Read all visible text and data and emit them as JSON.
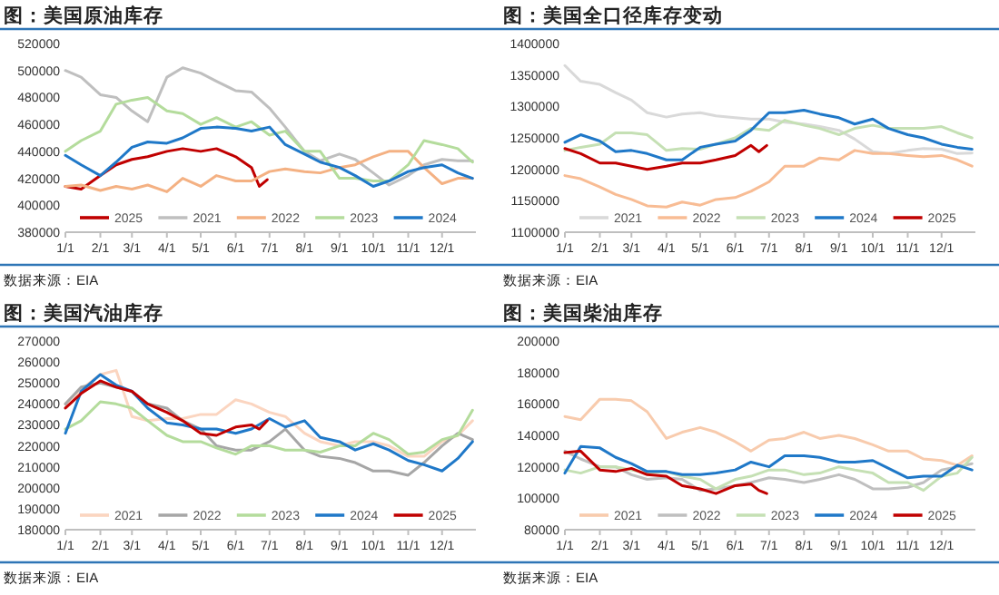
{
  "chart_data": [
    {
      "type": "line",
      "title": "图：美国原油库存",
      "annotations": [
        "数据来源：EIA"
      ],
      "legend": "bottom",
      "line_style": "solid",
      "x": [
        "--01-01",
        "--01-15",
        "--02-01",
        "--02-15",
        "--03-01",
        "--03-15",
        "--04-01",
        "--04-15",
        "--05-01",
        "--05-15",
        "--06-01",
        "--06-15",
        "--07-01",
        "--07-15",
        "--08-01",
        "--08-15",
        "--09-01",
        "--09-15",
        "--10-01",
        "--10-15",
        "--11-01",
        "--11-15",
        "--12-01",
        "--12-15",
        "--12-28"
      ],
      "xlim": [
        "--01-01",
        "--12-31"
      ],
      "xticks": [
        {
          "value": "--01-01",
          "label": "1/1"
        },
        {
          "value": "--02-01",
          "label": "2/1"
        },
        {
          "value": "--03-01",
          "label": "3/1"
        },
        {
          "value": "--04-01",
          "label": "4/1"
        },
        {
          "value": "--05-01",
          "label": "5/1"
        },
        {
          "value": "--06-01",
          "label": "6/1"
        },
        {
          "value": "--07-01",
          "label": "7/1"
        },
        {
          "value": "--08-01",
          "label": "8/1"
        },
        {
          "value": "--09-01",
          "label": "9/1"
        },
        {
          "value": "--10-01",
          "label": "10/1"
        },
        {
          "value": "--11-01",
          "label": "11/1"
        },
        {
          "value": "--12-01",
          "label": "12/1"
        }
      ],
      "ylim": [
        380000,
        520000
      ],
      "yticks": [
        380000,
        400000,
        420000,
        440000,
        460000,
        480000,
        500000,
        520000
      ],
      "series": [
        {
          "name": "2025",
          "color": "#c00000",
          "x": [
            "--01-01",
            "--01-15",
            "--02-01",
            "--02-15",
            "--03-01",
            "--03-15",
            "--04-01",
            "--04-15",
            "--05-01",
            "--05-15",
            "--06-01",
            "--06-15",
            "--06-22",
            "--06-29"
          ],
          "values": [
            414000,
            412000,
            422000,
            430000,
            434000,
            436000,
            440000,
            442000,
            440000,
            442000,
            436000,
            428000,
            414000,
            419000
          ]
        },
        {
          "name": "2021",
          "color": "#bfbfbf",
          "values": [
            500000,
            495000,
            482000,
            480000,
            470000,
            462000,
            495000,
            502000,
            498000,
            492000,
            485000,
            484000,
            472000,
            458000,
            440000,
            433000,
            438000,
            434000,
            424000,
            415000,
            422000,
            430000,
            434000,
            433000,
            433000
          ]
        },
        {
          "name": "2022",
          "color": "#f4b183",
          "values": [
            414000,
            415000,
            411000,
            414000,
            412000,
            415000,
            410000,
            420000,
            414000,
            422000,
            418000,
            418000,
            425000,
            427000,
            425000,
            424000,
            428000,
            430000,
            436000,
            440000,
            440000,
            428000,
            416000,
            420000,
            420000
          ]
        },
        {
          "name": "2023",
          "color": "#b4dc9c",
          "values": [
            440000,
            448000,
            455000,
            475000,
            478000,
            480000,
            470000,
            468000,
            460000,
            465000,
            458000,
            462000,
            452000,
            455000,
            440000,
            440000,
            420000,
            420000,
            418000,
            418000,
            430000,
            448000,
            445000,
            442000,
            432000
          ]
        },
        {
          "name": "2024",
          "color": "#1f78c8",
          "values": [
            437000,
            430000,
            422000,
            432000,
            443000,
            447000,
            446000,
            450000,
            457000,
            458000,
            457000,
            455000,
            458000,
            445000,
            438000,
            432000,
            428000,
            422000,
            414000,
            418000,
            425000,
            428000,
            430000,
            424000,
            420000
          ]
        }
      ]
    },
    {
      "type": "line",
      "title": "图：美国全口径库存变动",
      "annotations": [
        "数据来源：EIA"
      ],
      "legend": "bottom",
      "line_style": "solid",
      "x": [
        "--01-01",
        "--01-15",
        "--02-01",
        "--02-15",
        "--03-01",
        "--03-15",
        "--04-01",
        "--04-15",
        "--05-01",
        "--05-15",
        "--06-01",
        "--06-15",
        "--07-01",
        "--07-15",
        "--08-01",
        "--08-15",
        "--09-01",
        "--09-15",
        "--10-01",
        "--10-15",
        "--11-01",
        "--11-15",
        "--12-01",
        "--12-15",
        "--12-28"
      ],
      "xlim": [
        "--01-01",
        "--12-31"
      ],
      "xticks": [
        {
          "value": "--01-01",
          "label": "1/1"
        },
        {
          "value": "--02-01",
          "label": "2/1"
        },
        {
          "value": "--03-01",
          "label": "3/1"
        },
        {
          "value": "--04-01",
          "label": "4/1"
        },
        {
          "value": "--05-01",
          "label": "5/1"
        },
        {
          "value": "--06-01",
          "label": "6/1"
        },
        {
          "value": "--07-01",
          "label": "7/1"
        },
        {
          "value": "--08-01",
          "label": "8/1"
        },
        {
          "value": "--09-01",
          "label": "9/1"
        },
        {
          "value": "--10-01",
          "label": "10/1"
        },
        {
          "value": "--11-01",
          "label": "11/1"
        },
        {
          "value": "--12-01",
          "label": "12/1"
        }
      ],
      "ylim": [
        1100000,
        1400000
      ],
      "yticks": [
        1100000,
        1150000,
        1200000,
        1250000,
        1300000,
        1350000,
        1400000
      ],
      "series": [
        {
          "name": "2021",
          "color": "#d9d9d9",
          "values": [
            1365000,
            1340000,
            1335000,
            1322000,
            1310000,
            1290000,
            1283000,
            1288000,
            1290000,
            1285000,
            1282000,
            1280000,
            1280000,
            1275000,
            1272000,
            1268000,
            1262000,
            1248000,
            1228000,
            1225000,
            1230000,
            1233000,
            1232000,
            1225000,
            1226000
          ]
        },
        {
          "name": "2022",
          "color": "#f8bc94",
          "values": [
            1190000,
            1185000,
            1172000,
            1160000,
            1152000,
            1142000,
            1140000,
            1148000,
            1143000,
            1152000,
            1155000,
            1165000,
            1180000,
            1205000,
            1205000,
            1218000,
            1215000,
            1230000,
            1225000,
            1225000,
            1222000,
            1220000,
            1222000,
            1215000,
            1205000
          ]
        },
        {
          "name": "2023",
          "color": "#c5e0b4",
          "values": [
            1230000,
            1235000,
            1240000,
            1258000,
            1258000,
            1255000,
            1230000,
            1233000,
            1232000,
            1240000,
            1250000,
            1265000,
            1262000,
            1278000,
            1270000,
            1265000,
            1255000,
            1265000,
            1270000,
            1265000,
            1265000,
            1265000,
            1268000,
            1258000,
            1250000
          ]
        },
        {
          "name": "2024",
          "color": "#1f78c8",
          "values": [
            1243000,
            1255000,
            1245000,
            1228000,
            1230000,
            1225000,
            1215000,
            1215000,
            1235000,
            1240000,
            1245000,
            1262000,
            1290000,
            1290000,
            1294000,
            1288000,
            1282000,
            1272000,
            1280000,
            1265000,
            1255000,
            1250000,
            1240000,
            1235000,
            1232000
          ]
        },
        {
          "name": "2025",
          "color": "#c00000",
          "x": [
            "--01-01",
            "--01-15",
            "--02-01",
            "--02-15",
            "--03-01",
            "--03-15",
            "--04-01",
            "--04-15",
            "--05-01",
            "--05-15",
            "--06-01",
            "--06-15",
            "--06-22",
            "--06-29"
          ],
          "values": [
            1233000,
            1225000,
            1210000,
            1210000,
            1205000,
            1200000,
            1205000,
            1210000,
            1210000,
            1215000,
            1222000,
            1238000,
            1228000,
            1238000
          ]
        }
      ]
    },
    {
      "type": "line",
      "title": "图：美国汽油库存",
      "annotations": [
        "数据来源：EIA"
      ],
      "legend": "bottom",
      "line_style": "solid",
      "x": [
        "--01-01",
        "--01-15",
        "--02-01",
        "--02-15",
        "--03-01",
        "--03-15",
        "--04-01",
        "--04-15",
        "--05-01",
        "--05-15",
        "--06-01",
        "--06-15",
        "--07-01",
        "--07-15",
        "--08-01",
        "--08-15",
        "--09-01",
        "--09-15",
        "--10-01",
        "--10-15",
        "--11-01",
        "--11-15",
        "--12-01",
        "--12-15",
        "--12-28"
      ],
      "xlim": [
        "--01-01",
        "--12-31"
      ],
      "xticks": [
        {
          "value": "--01-01",
          "label": "1/1"
        },
        {
          "value": "--02-01",
          "label": "2/1"
        },
        {
          "value": "--03-01",
          "label": "3/1"
        },
        {
          "value": "--04-01",
          "label": "4/1"
        },
        {
          "value": "--05-01",
          "label": "5/1"
        },
        {
          "value": "--06-01",
          "label": "6/1"
        },
        {
          "value": "--07-01",
          "label": "7/1"
        },
        {
          "value": "--08-01",
          "label": "8/1"
        },
        {
          "value": "--09-01",
          "label": "9/1"
        },
        {
          "value": "--10-01",
          "label": "10/1"
        },
        {
          "value": "--11-01",
          "label": "11/1"
        },
        {
          "value": "--12-01",
          "label": "12/1"
        }
      ],
      "ylim": [
        180000,
        270000
      ],
      "yticks": [
        180000,
        190000,
        200000,
        210000,
        220000,
        230000,
        240000,
        250000,
        260000,
        270000
      ],
      "series": [
        {
          "name": "2021",
          "color": "#fbd5c0",
          "values": [
            240000,
            247000,
            254000,
            256000,
            234000,
            232000,
            233000,
            233000,
            235000,
            235000,
            242000,
            240000,
            236000,
            234000,
            226000,
            222000,
            220000,
            222000,
            222000,
            220000,
            215000,
            215000,
            222000,
            225000,
            232000
          ]
        },
        {
          "name": "2022",
          "color": "#a6a6a6",
          "values": [
            240000,
            248000,
            250000,
            248000,
            246000,
            240000,
            238000,
            232000,
            228000,
            220000,
            218000,
            218000,
            222000,
            228000,
            218000,
            215000,
            214000,
            212000,
            208000,
            208000,
            206000,
            212000,
            220000,
            226000,
            223000
          ]
        },
        {
          "name": "2023",
          "color": "#b4dc9c",
          "values": [
            228000,
            232000,
            241000,
            240000,
            238000,
            232000,
            225000,
            222000,
            222000,
            219000,
            216000,
            220000,
            220000,
            218000,
            218000,
            217000,
            220000,
            220000,
            226000,
            223000,
            216000,
            217000,
            223000,
            225000,
            237000
          ]
        },
        {
          "name": "2024",
          "color": "#1f78c8",
          "values": [
            226000,
            246000,
            254000,
            249000,
            246000,
            238000,
            231000,
            230000,
            228000,
            228000,
            226000,
            228000,
            233000,
            229000,
            232000,
            224000,
            222000,
            218000,
            221000,
            218000,
            213000,
            211000,
            208000,
            214000,
            222000
          ]
        },
        {
          "name": "2025",
          "color": "#c00000",
          "x": [
            "--01-01",
            "--01-15",
            "--02-01",
            "--02-15",
            "--03-01",
            "--03-15",
            "--04-01",
            "--04-15",
            "--05-01",
            "--05-15",
            "--06-01",
            "--06-15",
            "--06-22",
            "--06-29"
          ],
          "values": [
            238000,
            245000,
            251000,
            248000,
            246000,
            240000,
            236000,
            232000,
            226000,
            225000,
            229000,
            230000,
            228000,
            232000
          ]
        }
      ]
    },
    {
      "type": "line",
      "title": "图：美国柴油库存",
      "annotations": [
        "数据来源：EIA"
      ],
      "legend": "bottom",
      "line_style": "solid",
      "x": [
        "--01-01",
        "--01-15",
        "--02-01",
        "--02-15",
        "--03-01",
        "--03-15",
        "--04-01",
        "--04-15",
        "--05-01",
        "--05-15",
        "--06-01",
        "--06-15",
        "--07-01",
        "--07-15",
        "--08-01",
        "--08-15",
        "--09-01",
        "--09-15",
        "--10-01",
        "--10-15",
        "--11-01",
        "--11-15",
        "--12-01",
        "--12-15",
        "--12-28"
      ],
      "xlim": [
        "--01-01",
        "--12-31"
      ],
      "xticks": [
        {
          "value": "--01-01",
          "label": "1/1"
        },
        {
          "value": "--02-01",
          "label": "2/1"
        },
        {
          "value": "--03-01",
          "label": "3/1"
        },
        {
          "value": "--04-01",
          "label": "4/1"
        },
        {
          "value": "--05-01",
          "label": "5/1"
        },
        {
          "value": "--06-01",
          "label": "6/1"
        },
        {
          "value": "--07-01",
          "label": "7/1"
        },
        {
          "value": "--08-01",
          "label": "8/1"
        },
        {
          "value": "--09-01",
          "label": "9/1"
        },
        {
          "value": "--10-01",
          "label": "10/1"
        },
        {
          "value": "--11-01",
          "label": "11/1"
        },
        {
          "value": "--12-01",
          "label": "12/1"
        }
      ],
      "ylim": [
        80000,
        200000
      ],
      "yticks": [
        80000,
        100000,
        120000,
        140000,
        160000,
        180000,
        200000
      ],
      "series": [
        {
          "name": "2021",
          "color": "#f8cbad",
          "values": [
            152000,
            150000,
            163000,
            163000,
            162000,
            155000,
            138000,
            142000,
            145000,
            142000,
            136000,
            130000,
            137000,
            138000,
            142000,
            138000,
            140000,
            138000,
            134000,
            130000,
            130000,
            125000,
            124000,
            121000,
            127000
          ]
        },
        {
          "name": "2022",
          "color": "#bfbfbf",
          "values": [
            130000,
            125000,
            120000,
            120000,
            115000,
            112000,
            113000,
            112000,
            105000,
            106000,
            108000,
            110000,
            113000,
            112000,
            110000,
            112000,
            115000,
            112000,
            106000,
            106000,
            107000,
            110000,
            118000,
            120000,
            122000
          ]
        },
        {
          "name": "2023",
          "color": "#c5e0b4",
          "values": [
            118000,
            116000,
            120000,
            120000,
            118000,
            116000,
            117000,
            114000,
            112000,
            106000,
            112000,
            114000,
            118000,
            118000,
            115000,
            116000,
            120000,
            118000,
            116000,
            110000,
            110000,
            105000,
            114000,
            116000,
            126000
          ]
        },
        {
          "name": "2024",
          "color": "#1f78c8",
          "values": [
            116000,
            133000,
            132000,
            126000,
            122000,
            117000,
            117000,
            115000,
            115000,
            116000,
            118000,
            123000,
            120000,
            127000,
            127000,
            126000,
            123000,
            123000,
            124000,
            119000,
            113000,
            114000,
            114000,
            121000,
            118000
          ]
        },
        {
          "name": "2025",
          "color": "#c00000",
          "x": [
            "--01-01",
            "--01-15",
            "--02-01",
            "--02-15",
            "--03-01",
            "--03-15",
            "--04-01",
            "--04-15",
            "--05-01",
            "--05-15",
            "--06-01",
            "--06-15",
            "--06-22",
            "--06-29"
          ],
          "values": [
            129000,
            130000,
            118000,
            117000,
            119000,
            115000,
            114000,
            108000,
            106000,
            103000,
            108000,
            109000,
            105000,
            103000
          ]
        }
      ]
    }
  ]
}
